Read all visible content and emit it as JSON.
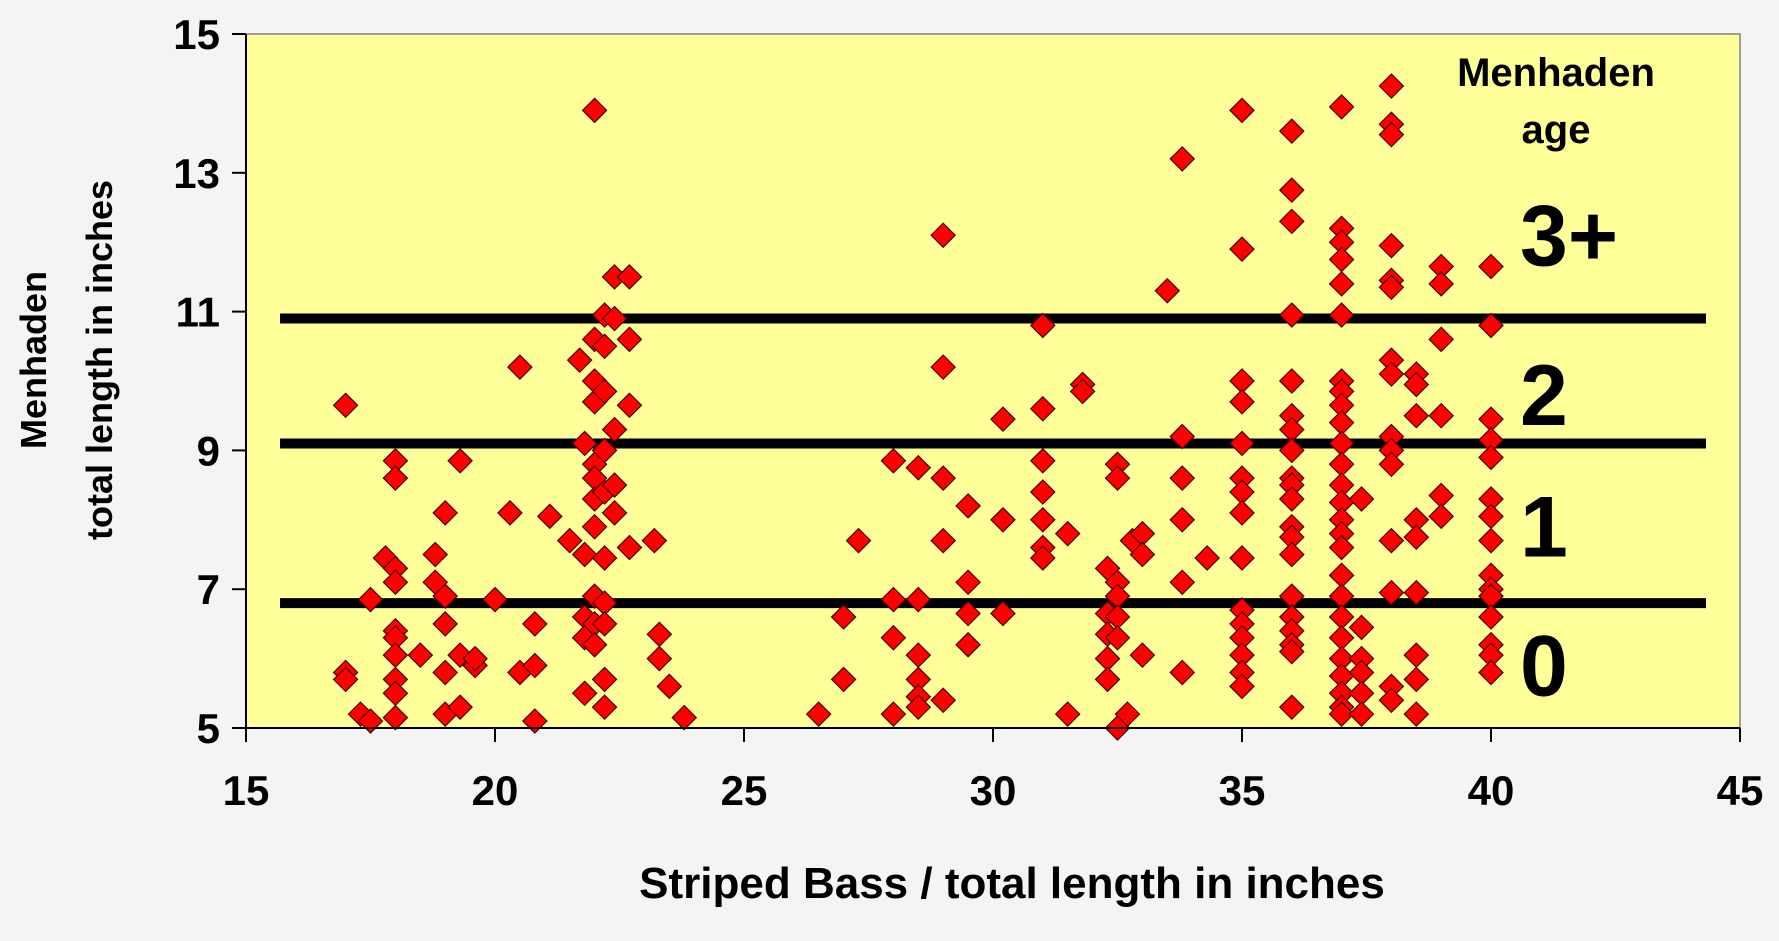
{
  "chart_data": {
    "type": "scatter",
    "xlabel": "Striped Bass / total length in inches",
    "ylabel_lines": [
      "Menhaden",
      "total length in inches"
    ],
    "xlim": [
      15,
      45
    ],
    "ylim": [
      5,
      15
    ],
    "xticks": [
      "15",
      "20",
      "25",
      "30",
      "35",
      "40",
      "45"
    ],
    "yticks": [
      "5",
      "7",
      "9",
      "11",
      "13",
      "15"
    ],
    "plot_background": "#ffff99",
    "marker_color": "#ff0000",
    "marker_shape": "diamond",
    "legend_title_lines": [
      "Menhaden",
      "age"
    ],
    "age_boundaries": [
      6.8,
      9.1,
      10.9
    ],
    "age_labels": [
      {
        "label": "0",
        "y": 5.9
      },
      {
        "label": "1",
        "y": 7.9
      },
      {
        "label": "2",
        "y": 9.8
      },
      {
        "label": "3+",
        "y": 12.1
      }
    ],
    "points": [
      [
        17,
        9.65
      ],
      [
        17,
        5.8
      ],
      [
        17,
        5.7
      ],
      [
        17.3,
        5.2
      ],
      [
        17.5,
        6.85
      ],
      [
        17.5,
        5.1
      ],
      [
        17.8,
        7.45
      ],
      [
        18,
        7.3
      ],
      [
        18,
        7.1
      ],
      [
        18,
        6.4
      ],
      [
        18,
        6.3
      ],
      [
        18,
        6.05
      ],
      [
        18,
        5.7
      ],
      [
        18,
        5.5
      ],
      [
        18,
        5.15
      ],
      [
        18,
        8.85
      ],
      [
        18,
        8.6
      ],
      [
        18.5,
        6.05
      ],
      [
        18.8,
        7.5
      ],
      [
        18.8,
        7.1
      ],
      [
        19,
        6.9
      ],
      [
        19,
        6.5
      ],
      [
        19,
        5.8
      ],
      [
        19,
        5.2
      ],
      [
        19,
        8.1
      ],
      [
        19.3,
        6.05
      ],
      [
        19.3,
        5.3
      ],
      [
        19.3,
        8.85
      ],
      [
        19.6,
        5.9
      ],
      [
        19.6,
        6.0
      ],
      [
        20,
        6.85
      ],
      [
        20.3,
        8.1
      ],
      [
        20.5,
        10.2
      ],
      [
        20.5,
        5.8
      ],
      [
        20.8,
        6.5
      ],
      [
        20.8,
        5.9
      ],
      [
        20.8,
        5.1
      ],
      [
        21.1,
        8.05
      ],
      [
        21.5,
        7.7
      ],
      [
        21.7,
        10.3
      ],
      [
        21.8,
        9.1
      ],
      [
        21.8,
        7.5
      ],
      [
        21.8,
        6.6
      ],
      [
        21.8,
        6.3
      ],
      [
        21.8,
        5.5
      ],
      [
        22,
        13.9
      ],
      [
        22,
        10.6
      ],
      [
        22,
        10.0
      ],
      [
        22,
        9.7
      ],
      [
        22,
        8.8
      ],
      [
        22,
        8.6
      ],
      [
        22,
        8.3
      ],
      [
        22,
        7.9
      ],
      [
        22,
        6.9
      ],
      [
        22,
        6.5
      ],
      [
        22,
        6.2
      ],
      [
        22.2,
        10.95
      ],
      [
        22.2,
        10.5
      ],
      [
        22.2,
        9.85
      ],
      [
        22.2,
        9.0
      ],
      [
        22.2,
        8.4
      ],
      [
        22.2,
        7.45
      ],
      [
        22.2,
        6.8
      ],
      [
        22.2,
        6.5
      ],
      [
        22.2,
        5.7
      ],
      [
        22.2,
        5.3
      ],
      [
        22.4,
        11.5
      ],
      [
        22.4,
        10.9
      ],
      [
        22.4,
        9.3
      ],
      [
        22.4,
        8.5
      ],
      [
        22.4,
        8.1
      ],
      [
        22.7,
        11.5
      ],
      [
        22.7,
        10.6
      ],
      [
        22.7,
        9.65
      ],
      [
        22.7,
        7.6
      ],
      [
        23.2,
        7.7
      ],
      [
        23.3,
        6.35
      ],
      [
        23.3,
        6.0
      ],
      [
        23.5,
        5.6
      ],
      [
        23.8,
        5.15
      ],
      [
        26.5,
        5.2
      ],
      [
        27,
        6.6
      ],
      [
        27,
        5.7
      ],
      [
        27.3,
        7.7
      ],
      [
        28,
        8.85
      ],
      [
        28,
        6.85
      ],
      [
        28,
        6.3
      ],
      [
        28,
        5.2
      ],
      [
        28.5,
        8.75
      ],
      [
        28.5,
        6.85
      ],
      [
        28.5,
        6.05
      ],
      [
        28.5,
        5.7
      ],
      [
        28.5,
        5.45
      ],
      [
        28.5,
        5.3
      ],
      [
        29,
        12.1
      ],
      [
        29,
        10.2
      ],
      [
        29,
        8.6
      ],
      [
        29,
        7.7
      ],
      [
        29,
        5.4
      ],
      [
        29.5,
        8.2
      ],
      [
        29.5,
        7.1
      ],
      [
        29.5,
        6.65
      ],
      [
        29.5,
        6.2
      ],
      [
        30.2,
        9.45
      ],
      [
        30.2,
        8.0
      ],
      [
        30.2,
        6.65
      ],
      [
        31,
        10.8
      ],
      [
        31,
        9.6
      ],
      [
        31,
        8.85
      ],
      [
        31,
        8.4
      ],
      [
        31,
        8.0
      ],
      [
        31,
        7.6
      ],
      [
        31,
        7.45
      ],
      [
        31.5,
        7.8
      ],
      [
        31.5,
        5.2
      ],
      [
        31.8,
        9.95
      ],
      [
        31.8,
        9.85
      ],
      [
        32.3,
        7.3
      ],
      [
        32.3,
        6.65
      ],
      [
        32.3,
        6.35
      ],
      [
        32.3,
        6.0
      ],
      [
        32.3,
        5.7
      ],
      [
        32.5,
        8.8
      ],
      [
        32.5,
        8.6
      ],
      [
        32.5,
        7.1
      ],
      [
        32.5,
        6.9
      ],
      [
        32.5,
        6.6
      ],
      [
        32.5,
        6.3
      ],
      [
        32.5,
        5.0
      ],
      [
        32.7,
        5.2
      ],
      [
        32.8,
        7.7
      ],
      [
        33,
        7.8
      ],
      [
        33,
        7.5
      ],
      [
        33,
        6.05
      ],
      [
        33.5,
        11.3
      ],
      [
        33.8,
        13.2
      ],
      [
        33.8,
        9.2
      ],
      [
        33.8,
        8.6
      ],
      [
        33.8,
        8.0
      ],
      [
        33.8,
        7.1
      ],
      [
        33.8,
        5.8
      ],
      [
        34.3,
        7.45
      ],
      [
        35,
        13.9
      ],
      [
        35,
        11.9
      ],
      [
        35,
        10.0
      ],
      [
        35,
        9.7
      ],
      [
        35,
        9.1
      ],
      [
        35,
        8.6
      ],
      [
        35,
        8.4
      ],
      [
        35,
        8.1
      ],
      [
        35,
        7.45
      ],
      [
        35,
        6.7
      ],
      [
        35,
        6.5
      ],
      [
        35,
        6.3
      ],
      [
        35,
        6.05
      ],
      [
        35,
        5.8
      ],
      [
        35,
        5.6
      ],
      [
        36,
        13.6
      ],
      [
        36,
        12.75
      ],
      [
        36,
        12.3
      ],
      [
        36,
        10.95
      ],
      [
        36,
        10.0
      ],
      [
        36,
        9.5
      ],
      [
        36,
        9.3
      ],
      [
        36,
        9.0
      ],
      [
        36,
        8.6
      ],
      [
        36,
        8.5
      ],
      [
        36,
        8.3
      ],
      [
        36,
        7.9
      ],
      [
        36,
        7.75
      ],
      [
        36,
        7.5
      ],
      [
        36,
        6.9
      ],
      [
        36,
        6.6
      ],
      [
        36,
        6.4
      ],
      [
        36,
        6.2
      ],
      [
        36,
        6.1
      ],
      [
        36,
        5.3
      ],
      [
        37,
        13.95
      ],
      [
        37,
        12.2
      ],
      [
        37,
        12.0
      ],
      [
        37,
        11.75
      ],
      [
        37,
        11.4
      ],
      [
        37,
        10.95
      ],
      [
        37,
        10.0
      ],
      [
        37,
        9.85
      ],
      [
        37,
        9.65
      ],
      [
        37,
        9.4
      ],
      [
        37,
        9.1
      ],
      [
        37,
        8.8
      ],
      [
        37,
        8.5
      ],
      [
        37,
        8.25
      ],
      [
        37,
        8.0
      ],
      [
        37,
        7.8
      ],
      [
        37,
        7.6
      ],
      [
        37,
        7.2
      ],
      [
        37,
        6.9
      ],
      [
        37,
        6.6
      ],
      [
        37,
        6.3
      ],
      [
        37,
        6.0
      ],
      [
        37,
        5.75
      ],
      [
        37,
        5.5
      ],
      [
        37,
        5.3
      ],
      [
        37,
        5.2
      ],
      [
        37.4,
        8.3
      ],
      [
        37.4,
        6.45
      ],
      [
        37.4,
        6.0
      ],
      [
        37.4,
        5.8
      ],
      [
        37.4,
        5.5
      ],
      [
        37.4,
        5.2
      ],
      [
        38,
        14.25
      ],
      [
        38,
        13.7
      ],
      [
        38,
        13.55
      ],
      [
        38,
        11.95
      ],
      [
        38,
        11.45
      ],
      [
        38,
        11.35
      ],
      [
        38,
        10.3
      ],
      [
        38,
        10.1
      ],
      [
        38,
        9.2
      ],
      [
        38,
        9.0
      ],
      [
        38,
        8.8
      ],
      [
        38,
        7.7
      ],
      [
        38,
        6.95
      ],
      [
        38,
        5.6
      ],
      [
        38,
        5.4
      ],
      [
        38.5,
        10.1
      ],
      [
        38.5,
        9.95
      ],
      [
        38.5,
        9.5
      ],
      [
        38.5,
        8.0
      ],
      [
        38.5,
        7.75
      ],
      [
        38.5,
        6.95
      ],
      [
        38.5,
        6.05
      ],
      [
        38.5,
        5.7
      ],
      [
        38.5,
        5.2
      ],
      [
        39,
        11.65
      ],
      [
        39,
        11.4
      ],
      [
        39,
        10.6
      ],
      [
        39,
        9.5
      ],
      [
        39,
        8.35
      ],
      [
        39,
        8.05
      ],
      [
        40,
        11.65
      ],
      [
        40,
        10.8
      ],
      [
        40,
        9.45
      ],
      [
        40,
        9.15
      ],
      [
        40,
        8.9
      ],
      [
        40,
        8.3
      ],
      [
        40,
        8.05
      ],
      [
        40,
        7.7
      ],
      [
        40,
        7.2
      ],
      [
        40,
        7.0
      ],
      [
        40,
        6.9
      ],
      [
        40,
        6.6
      ],
      [
        40,
        6.2
      ],
      [
        40,
        6.05
      ],
      [
        40,
        5.8
      ]
    ]
  }
}
